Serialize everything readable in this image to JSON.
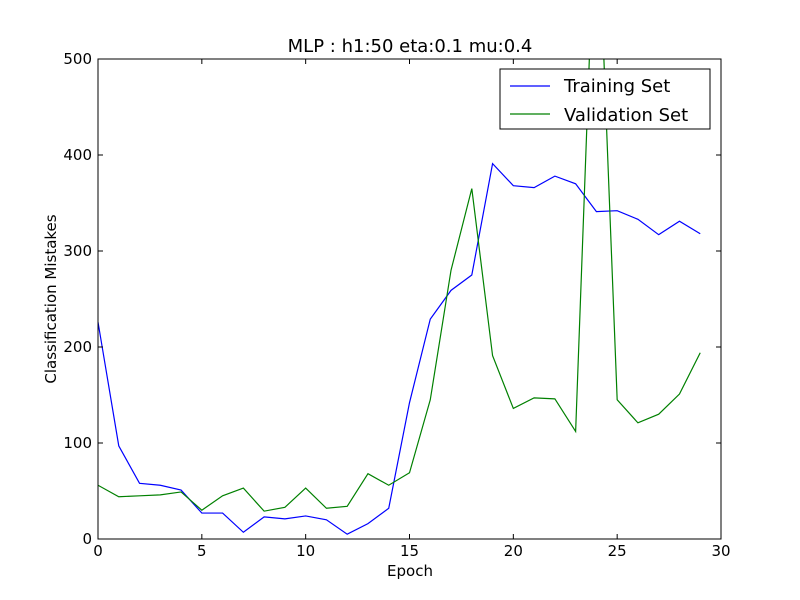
{
  "chart_data": {
    "type": "line",
    "title": "MLP : h1:50 eta:0.1 mu:0.4",
    "xlabel": "Epoch",
    "ylabel": "Classification Mistakes",
    "xlim": [
      0,
      30
    ],
    "ylim": [
      0,
      500
    ],
    "xticks": [
      "0",
      "5",
      "10",
      "15",
      "20",
      "25",
      "30"
    ],
    "yticks": [
      "0",
      "100",
      "200",
      "300",
      "400",
      "500"
    ],
    "grid": false,
    "legend_position": "top-right",
    "x": [
      0,
      1,
      2,
      3,
      4,
      5,
      6,
      7,
      8,
      9,
      10,
      11,
      12,
      13,
      14,
      15,
      16,
      17,
      18,
      19,
      20,
      21,
      22,
      23,
      24,
      25,
      26,
      27,
      28,
      29
    ],
    "series": [
      {
        "name": "Training Set",
        "color": "#0000ff",
        "values": [
          226,
          97,
          58,
          56,
          51,
          27,
          27,
          7,
          23,
          21,
          24,
          20,
          5,
          16,
          32,
          142,
          229,
          259,
          275,
          391,
          368,
          366,
          378,
          370,
          341,
          342,
          333,
          317,
          331,
          318
        ]
      },
      {
        "name": "Validation Set",
        "color": "#008000",
        "values": [
          56,
          44,
          45,
          46,
          49,
          30,
          45,
          53,
          29,
          33,
          53,
          32,
          34,
          68,
          56,
          69,
          145,
          280,
          365,
          191,
          136,
          147,
          146,
          112,
          700,
          145,
          121,
          130,
          151,
          194
        ]
      }
    ]
  }
}
